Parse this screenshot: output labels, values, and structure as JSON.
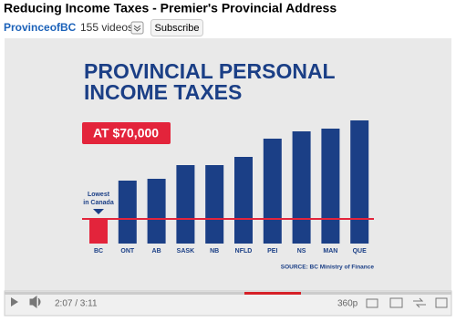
{
  "header": {
    "title": "Reducing Income Taxes - Premier's Provincial Address",
    "channel": "ProvinceofBC",
    "video_count": "155 videos",
    "subscribe": "Subscribe"
  },
  "player": {
    "time": "2:07 / 3:11",
    "quality": "360p"
  },
  "chart_data": {
    "type": "bar",
    "title": [
      "PROVINCIAL PERSONAL",
      "INCOME TAXES"
    ],
    "badge": "AT $70,000",
    "annotation": [
      "Lowest",
      "in Canada"
    ],
    "source": "SOURCE: BC Ministry of Finance",
    "categories": [
      "BC",
      "ONT",
      "AB",
      "SASK",
      "NB",
      "NFLD",
      "PEI",
      "NS",
      "MAN",
      "QUE"
    ],
    "values": [
      27,
      69,
      71,
      86,
      86,
      95,
      115,
      123,
      126,
      135
    ],
    "colors": [
      "#e3243b",
      "#1b3f86",
      "#1b3f86",
      "#1b3f86",
      "#1b3f86",
      "#1b3f86",
      "#1b3f86",
      "#1b3f86",
      "#1b3f86",
      "#1b3f86"
    ],
    "ylim": [
      0,
      140
    ]
  }
}
